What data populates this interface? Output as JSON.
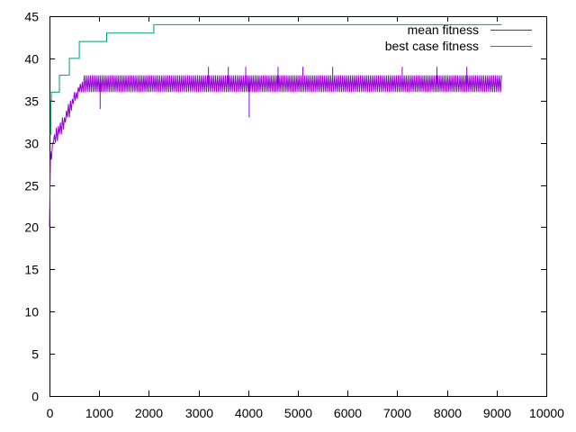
{
  "chart_data": {
    "type": "line",
    "title": "",
    "xlabel": "",
    "ylabel": "",
    "xlim": [
      0,
      10000
    ],
    "ylim": [
      0,
      45
    ],
    "xticks": [
      0,
      1000,
      2000,
      3000,
      4000,
      5000,
      6000,
      7000,
      8000,
      9000,
      10000
    ],
    "yticks": [
      0,
      5,
      10,
      15,
      20,
      25,
      30,
      35,
      40,
      45
    ],
    "grid": false,
    "legend_position": "top-right",
    "series": [
      {
        "name": "mean fitness",
        "color": "#9400d3",
        "style": "noisy-band",
        "x": [
          0,
          20,
          40,
          60,
          80,
          100,
          150,
          200,
          250,
          300,
          350,
          400,
          450,
          500,
          550,
          600,
          650,
          700,
          750,
          800,
          900,
          1000,
          1100,
          1500,
          2000,
          3000,
          4000,
          5000,
          6000,
          7000,
          8000,
          9100
        ],
        "low": [
          20,
          25,
          28,
          29,
          30,
          30,
          30,
          31,
          31,
          32,
          33,
          33,
          34,
          35,
          35,
          36,
          36,
          36,
          36,
          36,
          36,
          36,
          36,
          36,
          36,
          36,
          36,
          36,
          36,
          36,
          36,
          36
        ],
        "high": [
          27,
          29,
          30,
          30,
          31,
          31,
          32,
          32,
          33,
          33,
          34,
          35,
          35,
          36,
          36,
          37,
          37,
          38,
          38,
          38,
          38,
          38,
          38,
          38,
          38,
          38,
          38,
          38,
          38,
          38,
          38,
          38
        ],
        "spikes": [
          {
            "x": 1020,
            "y": 34
          },
          {
            "x": 3200,
            "y": 39
          },
          {
            "x": 3600,
            "y": 39
          },
          {
            "x": 3950,
            "y": 39
          },
          {
            "x": 4020,
            "y": 33
          },
          {
            "x": 4600,
            "y": 39
          },
          {
            "x": 5100,
            "y": 39
          },
          {
            "x": 5700,
            "y": 39
          },
          {
            "x": 7100,
            "y": 39
          },
          {
            "x": 7800,
            "y": 39
          },
          {
            "x": 8400,
            "y": 39
          }
        ]
      },
      {
        "name": "best case fitness",
        "color": "#009e73",
        "style": "step",
        "x": [
          0,
          30,
          40,
          50,
          200,
          400,
          600,
          1150,
          2100,
          9100
        ],
        "y": [
          31,
          35,
          36,
          36,
          38,
          40,
          42,
          43,
          44,
          44
        ]
      }
    ]
  }
}
